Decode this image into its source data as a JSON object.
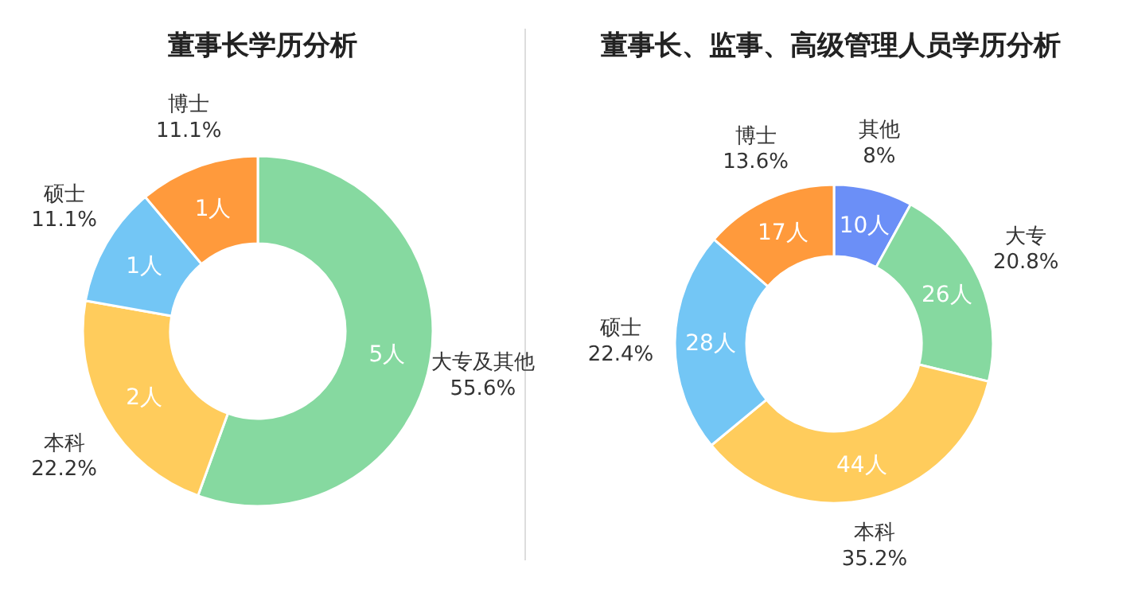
{
  "chart_data": [
    {
      "type": "donut",
      "title": "董事长学历分析",
      "categories": [
        "大专及其他",
        "本科",
        "硕士",
        "博士"
      ],
      "values": [
        5,
        2,
        1,
        1
      ],
      "colors": [
        "#86d9a0",
        "#ffcc5c",
        "#73c6f5",
        "#ff9a3c"
      ],
      "value_labels": [
        "5人",
        "2人",
        "1人",
        "1人"
      ],
      "annotations": [
        {
          "text": "55.6%",
          "x": "大专及其他"
        },
        {
          "text": "22.2%",
          "x": "本科"
        },
        {
          "text": "11.1%",
          "x": "硕士"
        },
        {
          "text": "11.1%",
          "x": "博士"
        }
      ]
    },
    {
      "type": "donut",
      "title": "董事长、监事、高级管理人员学历分析",
      "categories": [
        "其他",
        "大专",
        "本科",
        "硕士",
        "博士"
      ],
      "values": [
        10,
        26,
        44,
        28,
        17
      ],
      "colors": [
        "#6b8ff7",
        "#86d9a0",
        "#ffcc5c",
        "#73c6f5",
        "#ff9a3c"
      ],
      "value_labels": [
        "10人",
        "26人",
        "44人",
        "28人",
        "17人"
      ],
      "annotations": [
        {
          "text": "8%",
          "x": "其他"
        },
        {
          "text": "20.8%",
          "x": "大专"
        },
        {
          "text": "35.2%",
          "x": "本科"
        },
        {
          "text": "22.4%",
          "x": "硕士"
        },
        {
          "text": "13.6%",
          "x": "博士"
        }
      ]
    }
  ]
}
